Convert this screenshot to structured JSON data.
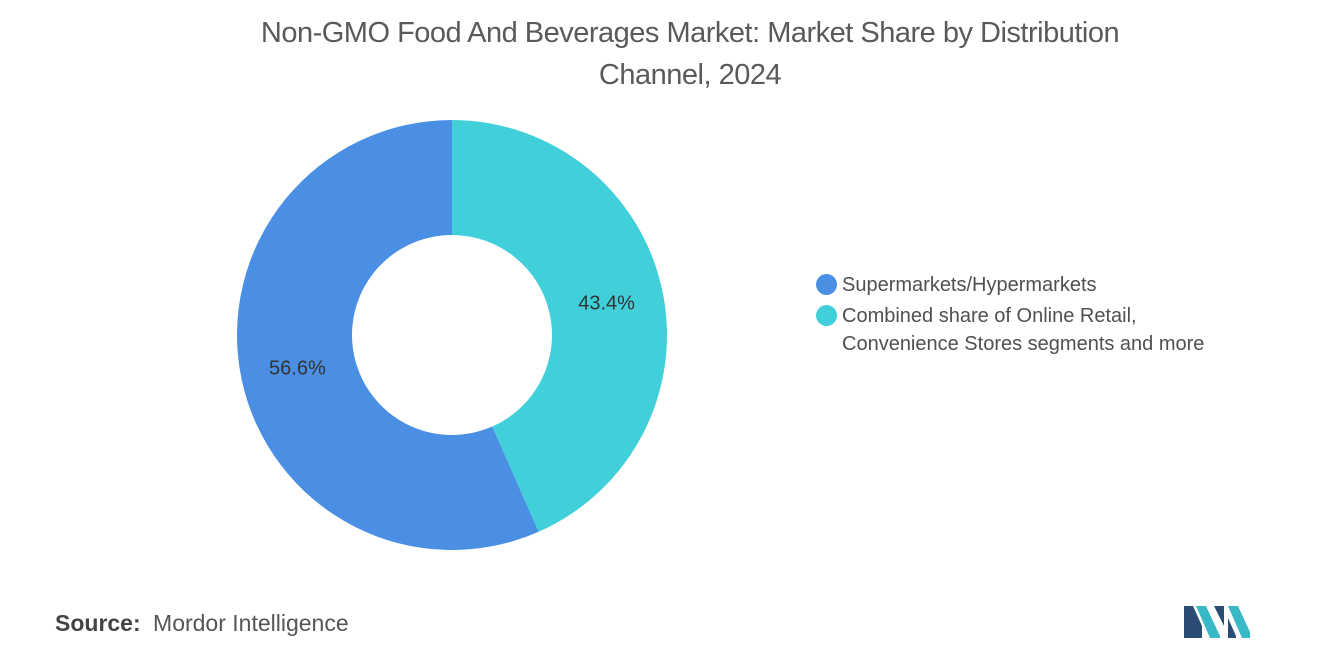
{
  "chart_data": {
    "type": "pie",
    "style": "donut",
    "title_lines": [
      "Non-GMO Food And Beverages Market: Market Share by Distribution",
      "Channel, 2024"
    ],
    "slices": [
      {
        "name": "Supermarkets/Hypermarkets",
        "legend_lines": [
          "Supermarkets/Hypermarkets"
        ],
        "value": 56.6,
        "label": "56.6%",
        "color": "#4a8fe3"
      },
      {
        "name": "Combined share of Online Retail, Convenience Stores segments and more",
        "legend_lines": [
          "Combined share of Online Retail,",
          "Convenience Stores segments and more"
        ],
        "value": 43.4,
        "label": "43.4%",
        "color": "#41d0da"
      }
    ],
    "legend_position": "right"
  },
  "footer": {
    "source_label": "Source:",
    "source_value": "Mordor Intelligence"
  },
  "logo": {
    "icon": "mordor-intelligence-logo",
    "colors": [
      "#2b4c73",
      "#39b8c8"
    ]
  }
}
